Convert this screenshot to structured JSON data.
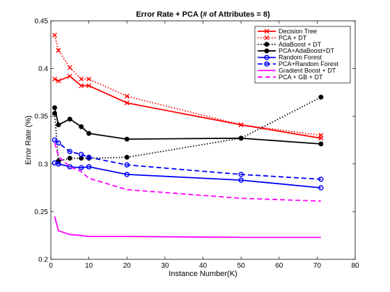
{
  "chart_data": {
    "type": "line",
    "title": "Error Rate + PCA (# of Attributes = 8)",
    "xlabel": "Instance Number(K)",
    "ylabel": "Error Rate (%)",
    "xlim": [
      0,
      80
    ],
    "ylim": [
      0.2,
      0.45
    ],
    "xticks": [
      0,
      10,
      20,
      30,
      40,
      50,
      60,
      70,
      80
    ],
    "yticks": [
      0.2,
      0.25,
      0.3,
      0.35,
      0.4,
      0.45
    ],
    "ytick_labels": [
      "0.2",
      "0.25",
      "0.3",
      "0.35",
      "0.4",
      "0.45"
    ],
    "grid": false,
    "legend_position": "top-right",
    "series": [
      {
        "name": "Decision Tree",
        "color": "#ff0000",
        "dash": "solid",
        "marker": "x",
        "x": [
          1,
          2,
          5,
          8,
          10,
          20,
          50,
          71
        ],
        "y": [
          0.389,
          0.387,
          0.392,
          0.382,
          0.382,
          0.364,
          0.341,
          0.327
        ]
      },
      {
        "name": "PCA + DT",
        "color": "#ff0000",
        "dash": "dotted",
        "marker": "x",
        "x": [
          1,
          2,
          5,
          8,
          10,
          20,
          50,
          71
        ],
        "y": [
          0.435,
          0.419,
          0.401,
          0.389,
          0.389,
          0.371,
          0.341,
          0.33
        ]
      },
      {
        "name": "AdaBoost + DT",
        "color": "#000000",
        "dash": "dotted",
        "marker": "dot",
        "x": [
          1,
          2,
          5,
          8,
          10,
          20,
          50,
          71
        ],
        "y": [
          0.353,
          0.303,
          0.306,
          0.306,
          0.306,
          0.307,
          0.327,
          0.37
        ]
      },
      {
        "name": "PCA+AdaBoost+DT",
        "color": "#000000",
        "dash": "solid",
        "marker": "dot",
        "x": [
          1,
          2,
          5,
          8,
          10,
          20,
          50,
          71
        ],
        "y": [
          0.359,
          0.341,
          0.347,
          0.339,
          0.332,
          0.326,
          0.327,
          0.321
        ]
      },
      {
        "name": "Random Forest",
        "color": "#0000ff",
        "dash": "solid",
        "marker": "circle",
        "x": [
          1,
          2,
          5,
          8,
          10,
          20,
          50,
          71
        ],
        "y": [
          0.301,
          0.3,
          0.297,
          0.296,
          0.297,
          0.289,
          0.283,
          0.275
        ]
      },
      {
        "name": "PCA+Random Forest",
        "color": "#0000ff",
        "dash": "dashed",
        "marker": "circle",
        "x": [
          1,
          2,
          5,
          8,
          10,
          20,
          50,
          71
        ],
        "y": [
          0.325,
          0.322,
          0.313,
          0.31,
          0.307,
          0.299,
          0.289,
          0.284
        ]
      },
      {
        "name": "Gradient Boost + DT",
        "color": "#ff00ff",
        "dash": "solid",
        "marker": "none",
        "x": [
          1,
          2,
          5,
          8,
          10,
          20,
          50,
          71
        ],
        "y": [
          0.245,
          0.23,
          0.226,
          0.225,
          0.224,
          0.224,
          0.223,
          0.223
        ]
      },
      {
        "name": "PCA + GB + DT",
        "color": "#ff00ff",
        "dash": "dashed",
        "marker": "none",
        "x": [
          1,
          2,
          5,
          8,
          10,
          20,
          50,
          71
        ],
        "y": [
          0.322,
          0.308,
          0.297,
          0.292,
          0.285,
          0.273,
          0.264,
          0.261
        ]
      }
    ]
  }
}
